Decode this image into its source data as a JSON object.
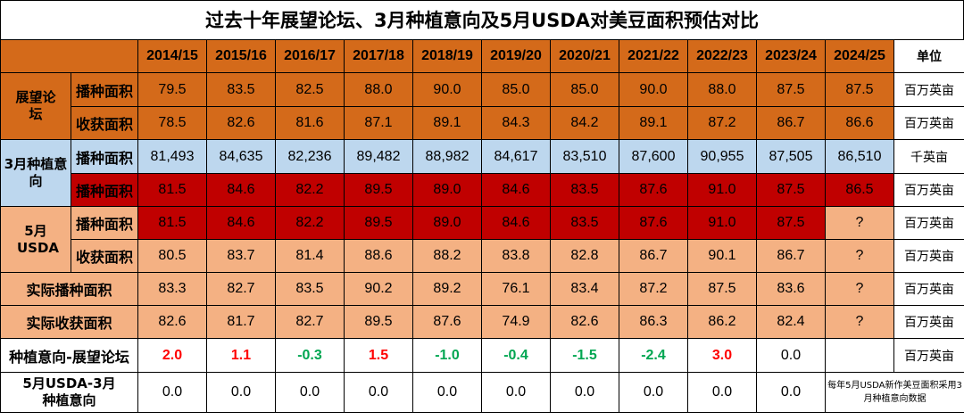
{
  "title": "过去十年展望论坛、3月种植意向及5月USDA对美豆面积预估对比",
  "header": {
    "years": [
      "2014/15",
      "2015/16",
      "2016/17",
      "2017/18",
      "2018/19",
      "2019/20",
      "2020/21",
      "2021/22",
      "2022/23",
      "2023/24",
      "2024/25"
    ],
    "unit_label": "单位"
  },
  "groups": {
    "outlook": "展望论坛",
    "march": "3月种植意向",
    "usda": "5月USDA"
  },
  "labels": {
    "planted": "播种面积",
    "harvested": "收获面积",
    "actual_planted": "实际播种面积",
    "actual_harvested": "实际收获面积",
    "diff1": "种植意向-展望论坛",
    "diff2": "5月USDA-3月种植意向"
  },
  "units": {
    "million_acres": "百万英亩",
    "thousand_acres": "千英亩"
  },
  "rows": {
    "outlook_planted": [
      "79.5",
      "83.5",
      "82.5",
      "88.0",
      "90.0",
      "85.0",
      "85.0",
      "90.0",
      "88.0",
      "87.5",
      "87.5"
    ],
    "outlook_harvested": [
      "78.5",
      "82.6",
      "81.6",
      "87.1",
      "89.1",
      "84.3",
      "84.2",
      "89.1",
      "87.2",
      "86.7",
      "86.6"
    ],
    "march_planted_k": [
      "81,493",
      "84,635",
      "82,236",
      "89,482",
      "88,982",
      "84,617",
      "83,510",
      "87,600",
      "90,955",
      "87,505",
      "86,510"
    ],
    "march_planted_m": [
      "81.5",
      "84.6",
      "82.2",
      "89.5",
      "89.0",
      "84.6",
      "83.5",
      "87.6",
      "91.0",
      "87.5",
      "86.5"
    ],
    "usda_planted": [
      "81.5",
      "84.6",
      "82.2",
      "89.5",
      "89.0",
      "84.6",
      "83.5",
      "87.6",
      "91.0",
      "87.5",
      "?"
    ],
    "usda_harvested": [
      "80.5",
      "83.7",
      "81.4",
      "88.6",
      "88.2",
      "83.8",
      "82.8",
      "86.7",
      "90.1",
      "86.7",
      "?"
    ],
    "actual_planted": [
      "83.3",
      "82.7",
      "83.5",
      "90.2",
      "89.2",
      "76.1",
      "83.4",
      "87.2",
      "87.5",
      "83.6",
      "?"
    ],
    "actual_harvested": [
      "82.6",
      "81.7",
      "82.7",
      "89.5",
      "87.6",
      "74.9",
      "82.6",
      "86.3",
      "86.2",
      "82.4",
      "?"
    ],
    "diff1": [
      "2.0",
      "1.1",
      "-0.3",
      "1.5",
      "-1.0",
      "-0.4",
      "-1.5",
      "-2.4",
      "3.0",
      "0.0",
      ""
    ],
    "diff2": [
      "0.0",
      "0.0",
      "0.0",
      "0.0",
      "0.0",
      "0.0",
      "0.0",
      "0.0",
      "0.0",
      "0.0",
      ""
    ]
  },
  "note": "每年5月USDA新作美豆面积采用3月种植意向数据",
  "colors": {
    "orange": "#d46a1a",
    "light_blue": "#bdd7ee",
    "red": "#c00000",
    "salmon": "#f4b183",
    "positive_text": "#ff0000",
    "negative_text": "#00a651"
  }
}
